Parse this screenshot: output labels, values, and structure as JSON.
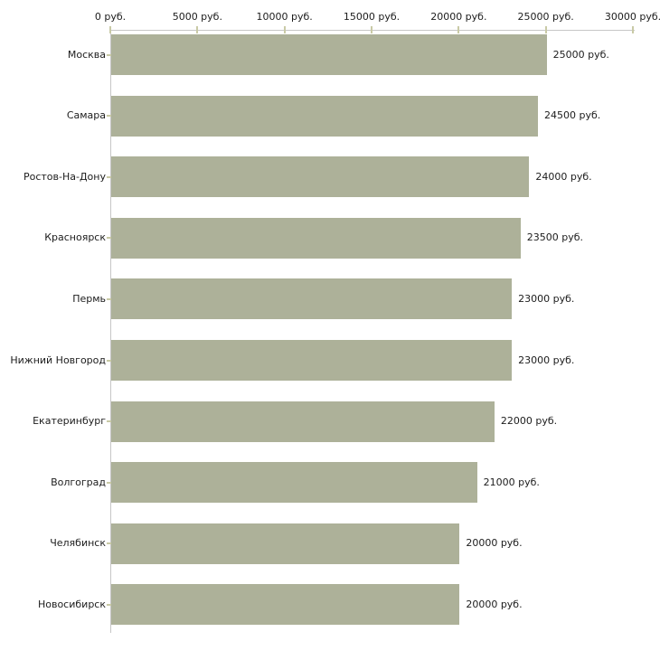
{
  "chart_data": {
    "type": "bar",
    "orientation": "horizontal",
    "title": "",
    "unit": "руб.",
    "categories": [
      "Москва",
      "Самара",
      "Ростов-На-Дону",
      "Красноярск",
      "Пермь",
      "Нижний Новгород",
      "Екатеринбург",
      "Волгоград",
      "Челябинск",
      "Новосибирск"
    ],
    "values": [
      25000,
      24500,
      24000,
      23500,
      23000,
      23000,
      22000,
      21000,
      20000,
      20000
    ],
    "value_labels": [
      "25000 руб.",
      "24500 руб.",
      "24000 руб.",
      "23500 руб.",
      "23000 руб.",
      "23000 руб.",
      "22000 руб.",
      "21000 руб.",
      "20000 руб.",
      "20000 руб."
    ],
    "x_tick_values": [
      0,
      5000,
      10000,
      15000,
      20000,
      25000,
      30000
    ],
    "x_tick_labels": [
      "0 руб.",
      "5000 руб.",
      "10000 руб.",
      "15000 руб.",
      "20000 руб.",
      "25000 руб.",
      "30000 руб."
    ],
    "xlim": [
      0,
      30000
    ],
    "x_axis_position": "top",
    "grid": false,
    "legend": false,
    "colors": {
      "bar": "#adb199",
      "axis": "#c6c6c6",
      "tick": "#c9caa6",
      "text": "#1c1c1c",
      "background": "#ffffff"
    }
  }
}
